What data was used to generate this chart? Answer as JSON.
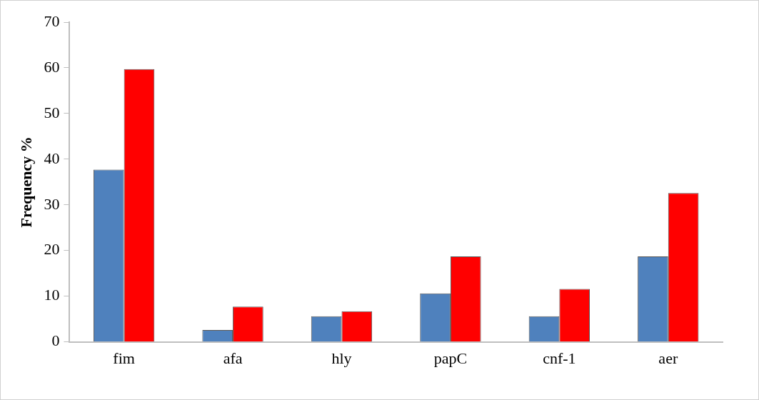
{
  "chart_data": {
    "type": "bar",
    "ylabel": "Frequency %",
    "categories": [
      "fim",
      "afa",
      "hly",
      "papC",
      "cnf-1",
      "aer"
    ],
    "series": [
      {
        "color": "#4f81bd",
        "values": [
          37.7,
          2.6,
          5.6,
          10.6,
          5.6,
          18.7
        ]
      },
      {
        "color": "#ff0000",
        "values": [
          59.7,
          7.7,
          6.7,
          18.7,
          11.6,
          32.6
        ]
      }
    ],
    "ylim": [
      0,
      70
    ],
    "yticks": [
      0,
      10,
      20,
      30,
      40,
      50,
      60,
      70
    ],
    "grid": false,
    "legend": false
  }
}
